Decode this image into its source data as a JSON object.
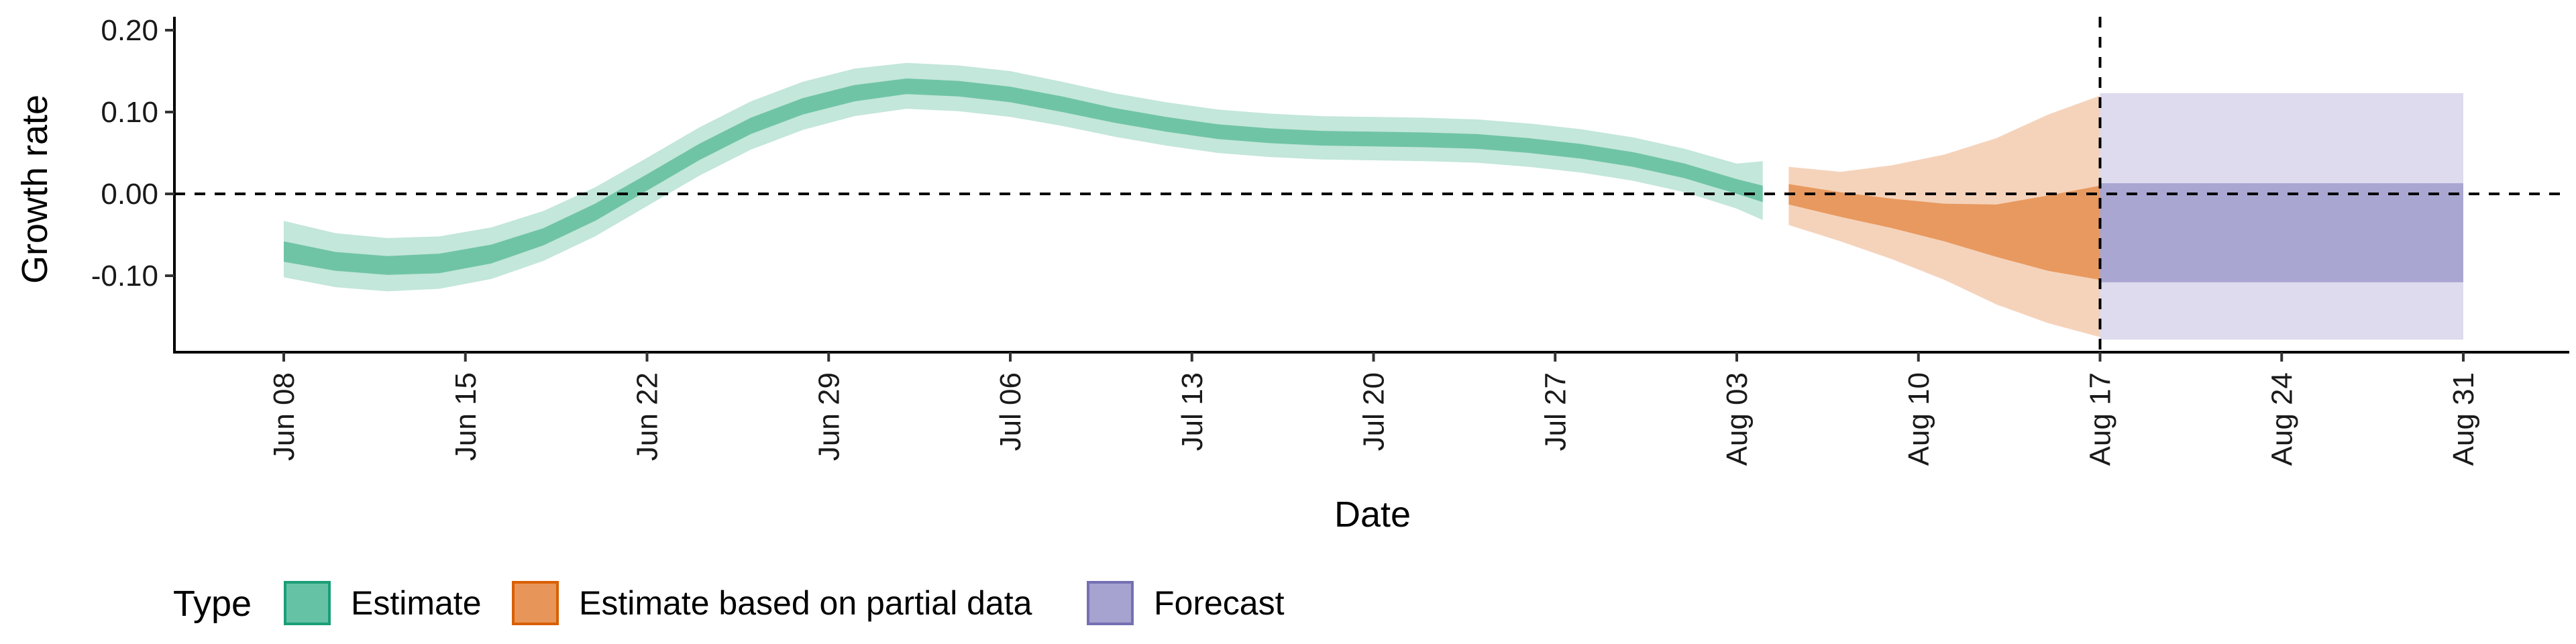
{
  "chart_data": {
    "type": "area",
    "xlabel": "Date",
    "ylabel": "Growth rate",
    "x_axis": {
      "type": "date",
      "range": [
        "2020-06-08",
        "2020-08-31"
      ],
      "ticks": [
        {
          "date": "2020-06-08",
          "label": "Jun 08"
        },
        {
          "date": "2020-06-15",
          "label": "Jun 15"
        },
        {
          "date": "2020-06-22",
          "label": "Jun 22"
        },
        {
          "date": "2020-06-29",
          "label": "Jun 29"
        },
        {
          "date": "2020-07-06",
          "label": "Jul 06"
        },
        {
          "date": "2020-07-13",
          "label": "Jul 13"
        },
        {
          "date": "2020-07-20",
          "label": "Jul 20"
        },
        {
          "date": "2020-07-27",
          "label": "Jul 27"
        },
        {
          "date": "2020-08-03",
          "label": "Aug 03"
        },
        {
          "date": "2020-08-10",
          "label": "Aug 10"
        },
        {
          "date": "2020-08-17",
          "label": "Aug 17"
        },
        {
          "date": "2020-08-24",
          "label": "Aug 24"
        },
        {
          "date": "2020-08-31",
          "label": "Aug 31"
        }
      ]
    },
    "y_axis": {
      "range": [
        -0.195,
        0.21
      ],
      "ticks": [
        {
          "value": 0.2,
          "label": "0.20"
        },
        {
          "value": 0.1,
          "label": "0.10"
        },
        {
          "value": 0.0,
          "label": "0.00"
        },
        {
          "value": -0.1,
          "label": "-0.10"
        }
      ]
    },
    "reference_lines": {
      "horizontal_y": 0.0,
      "vertical_date": "2020-08-17",
      "style": "dashed"
    },
    "legend": {
      "title": "Type",
      "position": "bottom",
      "entries": [
        {
          "label": "Estimate",
          "color": "#66c2a5",
          "border": "#1b9e77"
        },
        {
          "label": "Estimate based on partial data",
          "color": "#e8955a",
          "border": "#d95f02"
        },
        {
          "label": "Forecast",
          "color": "#a6a3d0",
          "border": "#7570b3"
        }
      ]
    },
    "series": [
      {
        "type": "Estimate",
        "outer_color": "#c3e7da",
        "inner_color": "#70c4a6",
        "points": [
          {
            "date": "2020-06-08",
            "outer_lo": -0.102,
            "inner_lo": -0.083,
            "inner_hi": -0.058,
            "outer_hi": -0.033
          },
          {
            "date": "2020-06-10",
            "outer_lo": -0.114,
            "inner_lo": -0.094,
            "inner_hi": -0.071,
            "outer_hi": -0.048
          },
          {
            "date": "2020-06-12",
            "outer_lo": -0.119,
            "inner_lo": -0.099,
            "inner_hi": -0.076,
            "outer_hi": -0.054
          },
          {
            "date": "2020-06-14",
            "outer_lo": -0.116,
            "inner_lo": -0.097,
            "inner_hi": -0.073,
            "outer_hi": -0.052
          },
          {
            "date": "2020-06-16",
            "outer_lo": -0.104,
            "inner_lo": -0.085,
            "inner_hi": -0.062,
            "outer_hi": -0.041
          },
          {
            "date": "2020-06-18",
            "outer_lo": -0.082,
            "inner_lo": -0.063,
            "inner_hi": -0.042,
            "outer_hi": -0.021
          },
          {
            "date": "2020-06-20",
            "outer_lo": -0.052,
            "inner_lo": -0.033,
            "inner_hi": -0.012,
            "outer_hi": 0.008
          },
          {
            "date": "2020-06-22",
            "outer_lo": -0.015,
            "inner_lo": 0.004,
            "inner_hi": 0.024,
            "outer_hi": 0.044
          },
          {
            "date": "2020-06-24",
            "outer_lo": 0.022,
            "inner_lo": 0.041,
            "inner_hi": 0.061,
            "outer_hi": 0.081
          },
          {
            "date": "2020-06-26",
            "outer_lo": 0.054,
            "inner_lo": 0.073,
            "inner_hi": 0.093,
            "outer_hi": 0.113
          },
          {
            "date": "2020-06-28",
            "outer_lo": 0.078,
            "inner_lo": 0.097,
            "inner_hi": 0.117,
            "outer_hi": 0.137
          },
          {
            "date": "2020-06-30",
            "outer_lo": 0.095,
            "inner_lo": 0.113,
            "inner_hi": 0.133,
            "outer_hi": 0.153
          },
          {
            "date": "2020-07-02",
            "outer_lo": 0.104,
            "inner_lo": 0.122,
            "inner_hi": 0.141,
            "outer_hi": 0.16
          },
          {
            "date": "2020-07-04",
            "outer_lo": 0.101,
            "inner_lo": 0.119,
            "inner_hi": 0.138,
            "outer_hi": 0.157
          },
          {
            "date": "2020-07-06",
            "outer_lo": 0.094,
            "inner_lo": 0.112,
            "inner_hi": 0.131,
            "outer_hi": 0.15
          },
          {
            "date": "2020-07-08",
            "outer_lo": 0.083,
            "inner_lo": 0.1,
            "inner_hi": 0.119,
            "outer_hi": 0.137
          },
          {
            "date": "2020-07-10",
            "outer_lo": 0.07,
            "inner_lo": 0.087,
            "inner_hi": 0.105,
            "outer_hi": 0.123
          },
          {
            "date": "2020-07-12",
            "outer_lo": 0.059,
            "inner_lo": 0.076,
            "inner_hi": 0.094,
            "outer_hi": 0.112
          },
          {
            "date": "2020-07-14",
            "outer_lo": 0.05,
            "inner_lo": 0.067,
            "inner_hi": 0.085,
            "outer_hi": 0.103
          },
          {
            "date": "2020-07-16",
            "outer_lo": 0.045,
            "inner_lo": 0.062,
            "inner_hi": 0.08,
            "outer_hi": 0.098
          },
          {
            "date": "2020-07-18",
            "outer_lo": 0.042,
            "inner_lo": 0.059,
            "inner_hi": 0.077,
            "outer_hi": 0.095
          },
          {
            "date": "2020-07-20",
            "outer_lo": 0.041,
            "inner_lo": 0.058,
            "inner_hi": 0.076,
            "outer_hi": 0.094
          },
          {
            "date": "2020-07-22",
            "outer_lo": 0.04,
            "inner_lo": 0.057,
            "inner_hi": 0.075,
            "outer_hi": 0.093
          },
          {
            "date": "2020-07-24",
            "outer_lo": 0.038,
            "inner_lo": 0.055,
            "inner_hi": 0.073,
            "outer_hi": 0.091
          },
          {
            "date": "2020-07-26",
            "outer_lo": 0.033,
            "inner_lo": 0.05,
            "inner_hi": 0.068,
            "outer_hi": 0.086
          },
          {
            "date": "2020-07-28",
            "outer_lo": 0.026,
            "inner_lo": 0.043,
            "inner_hi": 0.061,
            "outer_hi": 0.079
          },
          {
            "date": "2020-07-30",
            "outer_lo": 0.016,
            "inner_lo": 0.033,
            "inner_hi": 0.051,
            "outer_hi": 0.069
          },
          {
            "date": "2020-08-01",
            "outer_lo": 0.002,
            "inner_lo": 0.019,
            "inner_hi": 0.037,
            "outer_hi": 0.055
          },
          {
            "date": "2020-08-03",
            "outer_lo": -0.018,
            "inner_lo": 0.0,
            "inner_hi": 0.018,
            "outer_hi": 0.037
          },
          {
            "date": "2020-08-04",
            "outer_lo": -0.032,
            "inner_lo": -0.01,
            "inner_hi": 0.01,
            "outer_hi": 0.04
          }
        ]
      },
      {
        "type": "Estimate based on partial data",
        "outer_color": "#f5d3bb",
        "inner_color": "#e8995f",
        "points": [
          {
            "date": "2020-08-05",
            "outer_lo": -0.038,
            "inner_lo": -0.013,
            "inner_hi": 0.012,
            "outer_hi": 0.033
          },
          {
            "date": "2020-08-07",
            "outer_lo": -0.058,
            "inner_lo": -0.028,
            "inner_hi": 0.002,
            "outer_hi": 0.027
          },
          {
            "date": "2020-08-09",
            "outer_lo": -0.08,
            "inner_lo": -0.042,
            "inner_hi": -0.006,
            "outer_hi": 0.035
          },
          {
            "date": "2020-08-11",
            "outer_lo": -0.105,
            "inner_lo": -0.058,
            "inner_hi": -0.012,
            "outer_hi": 0.048
          },
          {
            "date": "2020-08-13",
            "outer_lo": -0.135,
            "inner_lo": -0.077,
            "inner_hi": -0.013,
            "outer_hi": 0.068
          },
          {
            "date": "2020-08-15",
            "outer_lo": -0.158,
            "inner_lo": -0.094,
            "inner_hi": -0.002,
            "outer_hi": 0.097
          },
          {
            "date": "2020-08-17",
            "outer_lo": -0.175,
            "inner_lo": -0.105,
            "inner_hi": 0.01,
            "outer_hi": 0.12
          }
        ]
      },
      {
        "type": "Forecast",
        "outer_color": "#dddbed",
        "inner_color": "#a9a6d1",
        "points": [
          {
            "date": "2020-08-17",
            "outer_lo": -0.178,
            "inner_lo": -0.108,
            "inner_hi": 0.013,
            "outer_hi": 0.123
          },
          {
            "date": "2020-08-31",
            "outer_lo": -0.178,
            "inner_lo": -0.108,
            "inner_hi": 0.013,
            "outer_hi": 0.123
          }
        ]
      }
    ]
  }
}
